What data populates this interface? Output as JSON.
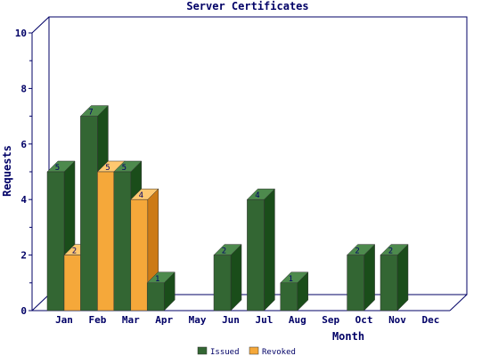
{
  "chart_data": {
    "type": "bar",
    "title": "Server Certificates",
    "xlabel": "Month",
    "ylabel": "Requests",
    "categories": [
      "Jan",
      "Feb",
      "Mar",
      "Apr",
      "May",
      "Jun",
      "Jul",
      "Aug",
      "Sep",
      "Oct",
      "Nov",
      "Dec"
    ],
    "series": [
      {
        "name": "Issued",
        "values": [
          5,
          7,
          5,
          1,
          0,
          2,
          4,
          1,
          0,
          2,
          2,
          0
        ],
        "color": "#336633",
        "side_color": "#1a4d1a",
        "top_color": "#4d8a4d"
      },
      {
        "name": "Revoked",
        "values": [
          2,
          5,
          4,
          0,
          0,
          0,
          0,
          0,
          0,
          0,
          0,
          0
        ],
        "color": "#f5a83a",
        "side_color": "#cc7a15",
        "top_color": "#ffc870"
      }
    ],
    "ylim": [
      0,
      10
    ],
    "yticks": [
      0,
      2,
      4,
      6,
      8,
      10
    ],
    "grid": false,
    "legend_position": "bottom",
    "three_d": true,
    "axis_color": "#000066"
  }
}
